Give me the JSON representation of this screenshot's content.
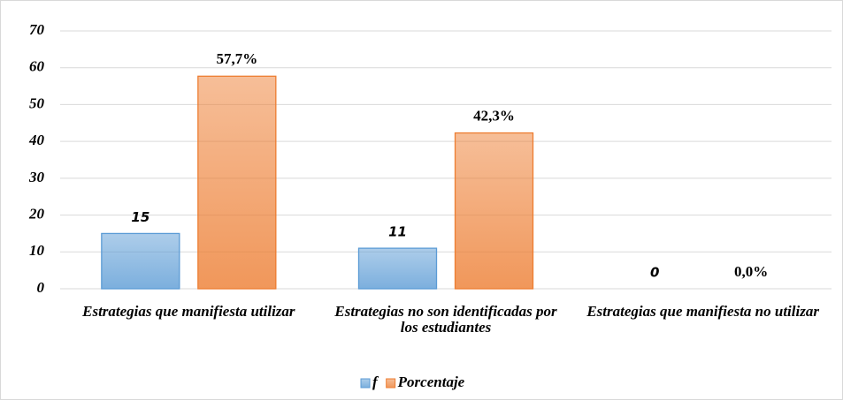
{
  "chart_data": {
    "type": "bar",
    "categories": [
      "Estrategias que manifiesta utilizar",
      "Estrategias no son identificadas por los estudiantes",
      "Estrategias que manifiesta no utilizar"
    ],
    "series": [
      {
        "name": "f",
        "color": "#5b9bd5",
        "values": [
          15,
          11,
          0
        ]
      },
      {
        "name": "Porcentaje",
        "color": "#ed7d31",
        "values": [
          57.7,
          42.3,
          0.0
        ],
        "value_labels": [
          "57,7%",
          "42,3%",
          "0,0%"
        ]
      }
    ],
    "ylim": [
      0,
      70
    ],
    "yticks": [
      0,
      10,
      20,
      30,
      40,
      50,
      60,
      70
    ],
    "grid": true,
    "legend": "bottom"
  }
}
